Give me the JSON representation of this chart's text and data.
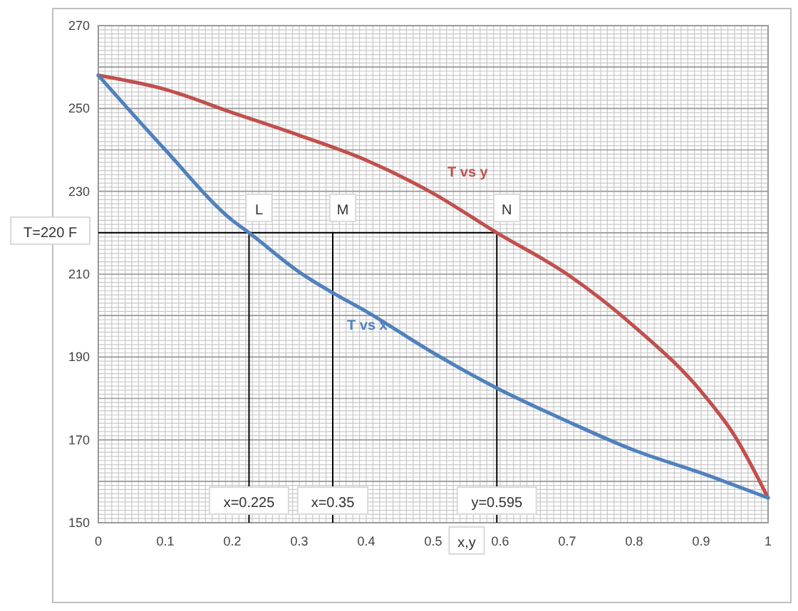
{
  "chart_data": {
    "type": "line",
    "xlabel": "x,y",
    "xlim": [
      0,
      1
    ],
    "xticks": [
      0,
      0.1,
      0.2,
      0.3,
      0.4,
      0.5,
      0.6,
      0.7,
      0.8,
      0.9,
      1
    ],
    "ylim": [
      150,
      270
    ],
    "yticks": [
      150,
      170,
      190,
      210,
      230,
      250,
      270
    ],
    "grid": true,
    "legend": false,
    "marker": "none",
    "line_style": "solid",
    "series": [
      {
        "name": "T vs y",
        "color": "#c0504d",
        "x": [
          0,
          0.1,
          0.2,
          0.3,
          0.4,
          0.5,
          0.595,
          0.7,
          0.8,
          0.9,
          0.95,
          1
        ],
        "values": [
          258,
          254.6,
          249,
          243.5,
          237.5,
          229.5,
          220,
          210,
          197.4,
          181.7,
          171,
          156
        ]
      },
      {
        "name": "T vs x",
        "color": "#4f81bd",
        "x": [
          0,
          0.1,
          0.2,
          0.225,
          0.3,
          0.35,
          0.4,
          0.5,
          0.595,
          0.7,
          0.8,
          0.9,
          1
        ],
        "values": [
          258,
          240,
          223,
          220,
          210.5,
          205.5,
          201,
          191,
          182.5,
          174.5,
          167.5,
          162,
          156
        ]
      }
    ],
    "ref_lines": [
      {
        "axis": "y",
        "value": 220,
        "label": "T=220 F",
        "color": "#000000"
      },
      {
        "axis": "x",
        "value": 0.225,
        "label": "x=0.225",
        "color": "#000000"
      },
      {
        "axis": "x",
        "value": 0.35,
        "label": "x=0.35",
        "color": "#000000"
      },
      {
        "axis": "x",
        "value": 0.595,
        "label": "y=0.595",
        "color": "#000000"
      }
    ],
    "annotations": [
      {
        "text": "L",
        "x": 0.225,
        "y": 220
      },
      {
        "text": "M",
        "x": 0.35,
        "y": 220
      },
      {
        "text": "N",
        "x": 0.595,
        "y": 220
      }
    ]
  }
}
